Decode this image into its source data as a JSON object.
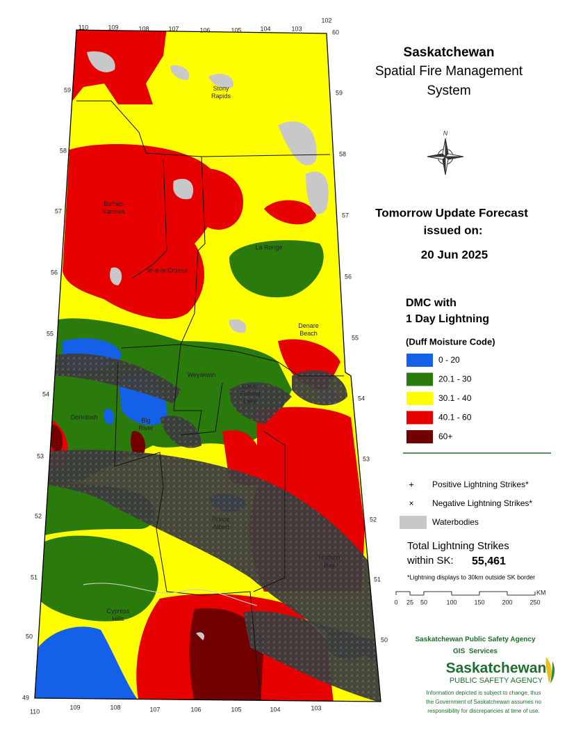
{
  "title": [
    "Saskatchewan",
    "Spatial Fire Management",
    "System"
  ],
  "forecast": {
    "heading": [
      "Tomorrow Update Forecast",
      "issued on:"
    ],
    "date": "20 Jun 2025"
  },
  "legend": {
    "title": [
      "DMC with",
      "1 Day Lightning"
    ],
    "subtitle": "(Duff Moisture Code)",
    "classes": [
      {
        "label": "0 - 20",
        "color": "#1560e8"
      },
      {
        "label": "20.1 - 30",
        "color": "#2a7a0c"
      },
      {
        "label": "30.1 - 40",
        "color": "#ffff00"
      },
      {
        "label": "40.1 - 60",
        "color": "#e60000"
      },
      {
        "label": "60+",
        "color": "#730000"
      }
    ],
    "symbols": [
      {
        "symbol": "+",
        "label": "Positive Lightning Strikes*"
      },
      {
        "symbol": "×",
        "label": "Negative Lightning Strikes*"
      },
      {
        "label": "Waterbodies",
        "color": "#c8c8c8"
      }
    ]
  },
  "total": {
    "label": [
      "Total Lightning Strikes",
      "within SK:"
    ],
    "value": "55,461",
    "note": "*Lightning displays to 30km outside SK border"
  },
  "scale": {
    "ticks": [
      "0",
      "25",
      "50",
      "100",
      "150",
      "200",
      "250"
    ],
    "unit": "KM"
  },
  "agency": {
    "name": "Saskatchewan Public Safety Agency",
    "unit": "GIS  Services",
    "logo": [
      "Saskatchewan",
      "PUBLIC SAFETY AGENCY"
    ],
    "disclaimer": [
      "Information depicted is subject to change, thus",
      "the Government of Saskatchewan assumes no",
      "responsibility for discrepancies at time of use."
    ]
  },
  "places": [
    [
      "Stony",
      "Rapids"
    ],
    [
      "Buffalo",
      "Narrows"
    ],
    [
      "Ile-a-la-Crosse"
    ],
    [
      "La Ronge"
    ],
    [
      "Denare",
      "Beach"
    ],
    [
      "Weyakwin"
    ],
    [
      "Lower",
      "Fishing",
      "Lake"
    ],
    [
      "Dorintosh"
    ],
    [
      "Big",
      "River"
    ],
    [
      "Prince",
      "Albert"
    ],
    [
      "Hudson",
      "Bay"
    ],
    [
      "Cypress",
      "Hills"
    ]
  ],
  "graticule": {
    "top": [
      "110",
      "109",
      "108",
      "107",
      "106",
      "105",
      "104",
      "103",
      "102"
    ],
    "left": [
      "59",
      "58",
      "57",
      "56",
      "55",
      "54",
      "53",
      "52",
      "51",
      "50",
      "49"
    ],
    "right": [
      "60",
      "59",
      "58",
      "57",
      "56",
      "55",
      "54",
      "53",
      "52",
      "51",
      "50"
    ],
    "bottom": [
      "110",
      "109",
      "108",
      "107",
      "106",
      "105",
      "104",
      "103"
    ]
  }
}
